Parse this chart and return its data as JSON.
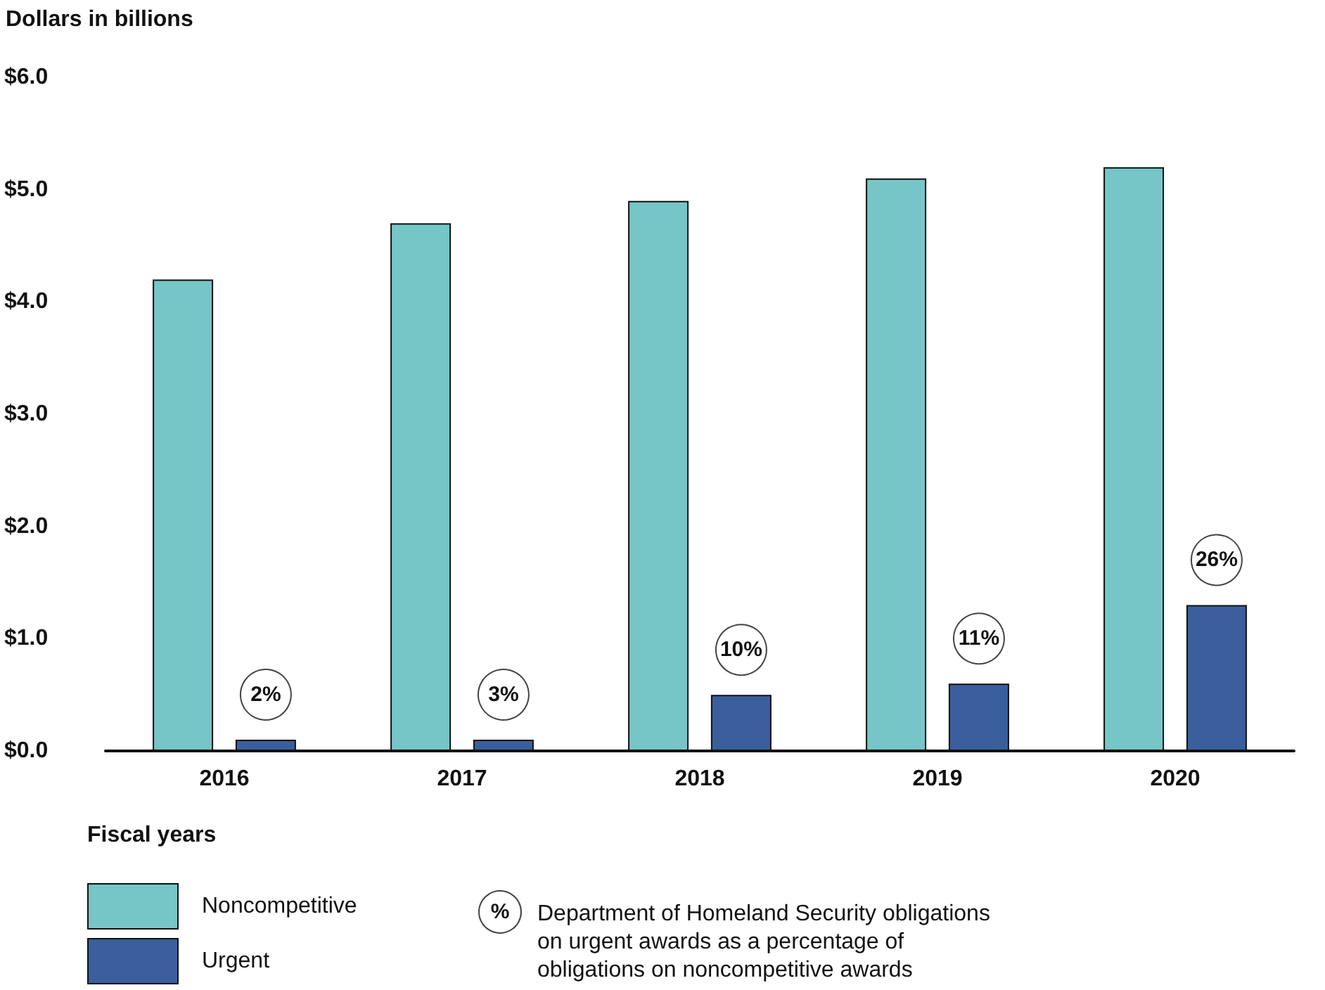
{
  "chart_data": {
    "type": "bar",
    "ylabel": "Dollars in billions",
    "xlabel": "Fiscal years",
    "categories": [
      "2016",
      "2017",
      "2018",
      "2019",
      "2020"
    ],
    "series": [
      {
        "name": "Noncompetitive",
        "color": "#76c5c7",
        "values": [
          4.2,
          4.7,
          4.9,
          5.1,
          5.2
        ]
      },
      {
        "name": "Urgent",
        "color": "#3a5f9c",
        "values": [
          0.1,
          0.1,
          0.5,
          0.6,
          1.3
        ]
      }
    ],
    "ylim": [
      0,
      6
    ],
    "yticks": [
      {
        "value": 0,
        "label": "$0.0"
      },
      {
        "value": 1,
        "label": "$1.0"
      },
      {
        "value": 2,
        "label": "$2.0"
      },
      {
        "value": 3,
        "label": "$3.0"
      },
      {
        "value": 4,
        "label": "$4.0"
      },
      {
        "value": 5,
        "label": "$5.0"
      },
      {
        "value": 6,
        "label": "$6.0"
      }
    ],
    "grid": false,
    "legend": "bottom left",
    "annotations": [
      "2%",
      "3%",
      "10%",
      "11%",
      "26%",
      "%",
      "Department of Homeland Security obligations\non urgent awards as a percentage of\nobligations on noncompetitive awards"
    ]
  }
}
